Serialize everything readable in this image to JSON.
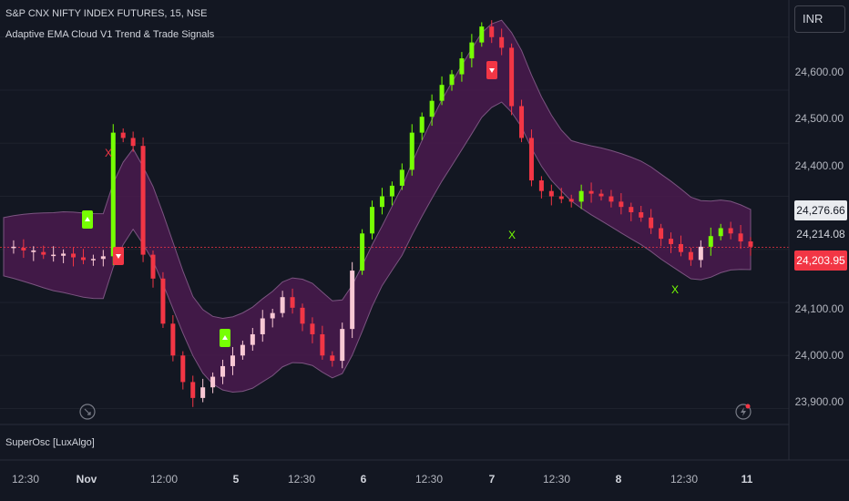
{
  "symbol_title": "S&P CNX NIFTY INDEX FUTURES, 15, NSE",
  "indicator_title": "Adaptive EMA Cloud V1 Trend & Trade Signals",
  "oscillator_title": "SuperOsc [LuxAlgo]",
  "currency": "INR",
  "price_axis": {
    "ticks": [
      "24,600.00",
      "24,500.00",
      "24,400.00",
      "24,100.00",
      "24,000.00",
      "23,900.00"
    ],
    "labels": {
      "upper": "24,276.66",
      "middle": "24,214.08",
      "last": "24,203.95"
    }
  },
  "time_axis": [
    "12:30",
    "Nov",
    "12:00",
    "5",
    "12:30",
    "6",
    "12:30",
    "7",
    "12:30",
    "8",
    "12:30",
    "11"
  ],
  "signals": {
    "exit": "X"
  },
  "colors": {
    "background": "#131722",
    "bull": "#76ff03",
    "bear": "#f23645",
    "neutral": "#f8c8d4",
    "cloud": "#5b1d5c",
    "last_price": "#f23645"
  },
  "chart_data": {
    "type": "candlestick",
    "y_range": [
      23870,
      24670
    ],
    "close_path": [
      24205,
      24203,
      24198,
      24195,
      24190,
      24188,
      24192,
      24185,
      24180,
      24182,
      24187,
      24420,
      24410,
      24395,
      24190,
      24145,
      24060,
      24000,
      23950,
      23920,
      23940,
      23960,
      23980,
      24000,
      24020,
      24040,
      24070,
      24080,
      24110,
      24090,
      24060,
      24040,
      24000,
      23990,
      24050,
      24160,
      24230,
      24280,
      24300,
      24320,
      24350,
      24420,
      24450,
      24480,
      24510,
      24530,
      24560,
      24590,
      24620,
      24600,
      24580,
      24470,
      24410,
      24330,
      24310,
      24300,
      24295,
      24290,
      24310,
      24305,
      24300,
      24290,
      24280,
      24270,
      24260,
      24240,
      24220,
      24210,
      24195,
      24180,
      24205,
      24225,
      24240,
      24230,
      24215,
      24205
    ]
  }
}
